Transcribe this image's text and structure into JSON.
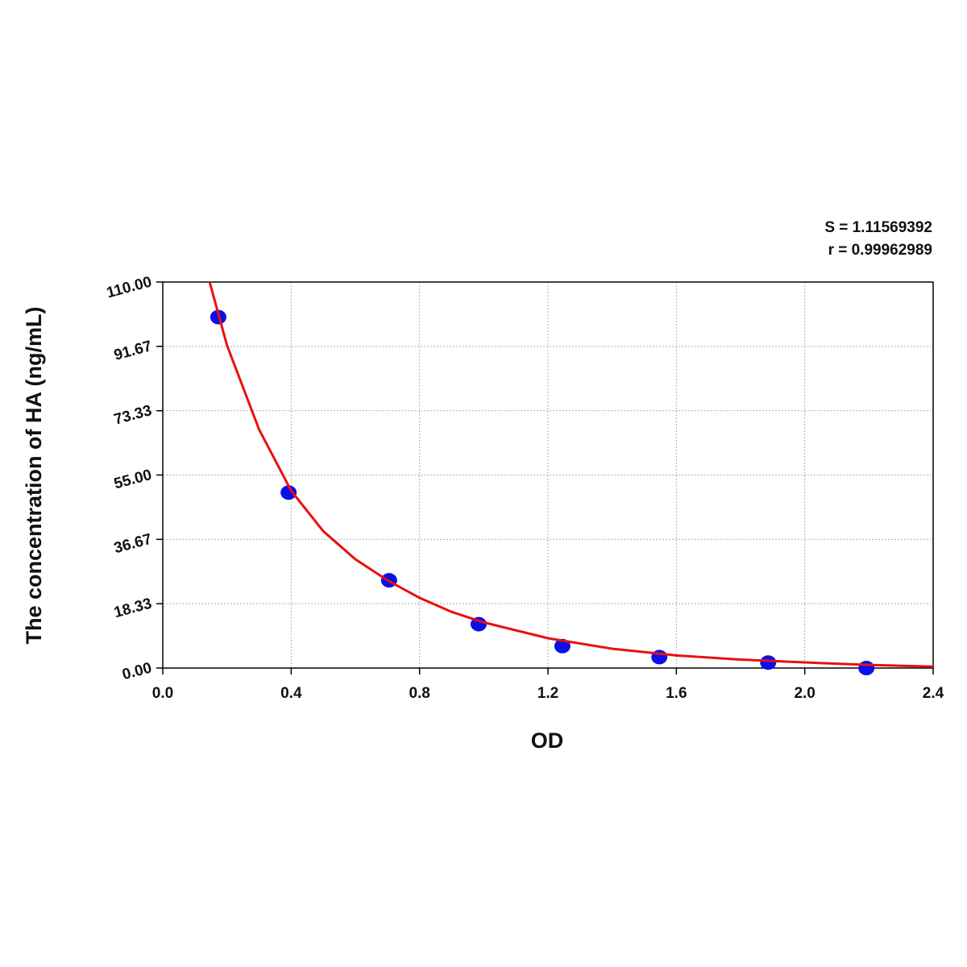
{
  "chart_data": {
    "type": "scatter",
    "annotations": [
      "S = 1.11569392",
      "r = 0.99962989"
    ],
    "x_label": "OD",
    "y_label": "The concentration of HA (ng/mL)",
    "series": [
      {
        "color": "#0a10e6",
        "x": [
          0.173,
          0.392,
          0.705,
          0.984,
          1.245,
          1.547,
          1.886,
          2.192
        ],
        "values": [
          100,
          50,
          25,
          12.5,
          6.25,
          3.12,
          1.56,
          0
        ]
      },
      {
        "type": "line",
        "color": "#e81010",
        "x": [
          0.146,
          0.2,
          0.3,
          0.4,
          0.5,
          0.6,
          0.7,
          0.8,
          0.9,
          1.0,
          1.2,
          1.4,
          1.6,
          1.8,
          2.0,
          2.2,
          2.4
        ],
        "values": [
          110,
          92,
          68,
          50.5,
          39,
          31,
          25,
          20,
          16,
          13,
          8.5,
          5.5,
          3.6,
          2.4,
          1.6,
          0.9,
          0.4
        ]
      }
    ],
    "xlim": [
      0,
      2.4
    ],
    "ylim": [
      0,
      110
    ],
    "xticks": [
      {
        "value": 0,
        "label": "0.0"
      },
      0.4,
      0.8,
      1.2,
      1.6,
      {
        "value": 2,
        "label": "2.0"
      },
      2.4
    ],
    "yticks": [
      {
        "value": 0,
        "label": "0.00"
      },
      18.33,
      36.67,
      {
        "value": 55,
        "label": "55.00"
      },
      73.33,
      91.67,
      {
        "value": 110,
        "label": "110.00"
      }
    ],
    "grid": true
  }
}
